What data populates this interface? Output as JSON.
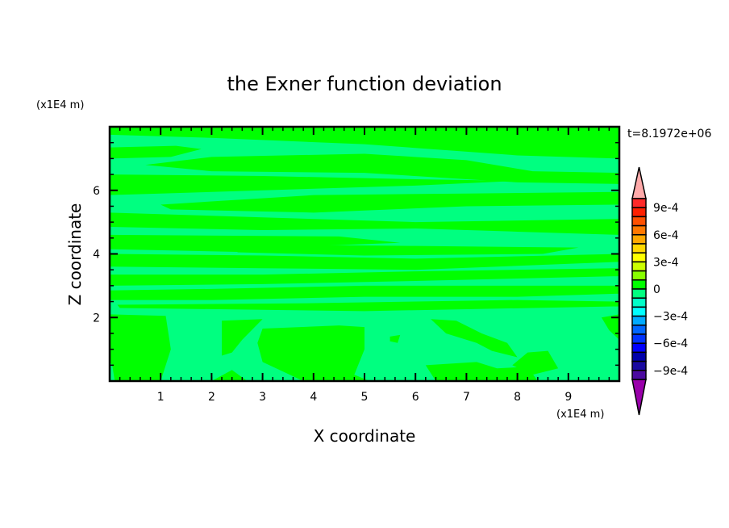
{
  "chart_data": {
    "type": "heatmap",
    "subtype": "filled-contour",
    "title": "the Exner function deviation",
    "xlabel": "X coordinate",
    "ylabel": "Z coordinate",
    "x_unit": "(x1E4 m)",
    "y_unit": "(x1E4 m)",
    "time_label": "t=8.1972e+06",
    "xlim": [
      0,
      10
    ],
    "ylim": [
      0,
      8
    ],
    "x_ticks": [
      1,
      2,
      3,
      4,
      5,
      6,
      7,
      8,
      9
    ],
    "y_ticks": [
      2,
      4,
      6
    ],
    "x_tick_labels": [
      "1",
      "2",
      "3",
      "4",
      "5",
      "6",
      "7",
      "8",
      "9"
    ],
    "y_tick_labels": [
      "2",
      "4",
      "6"
    ],
    "x_minor_step": 0.2,
    "y_minor_step": 0.5,
    "colorbar": {
      "levels_min": -0.001,
      "levels_max": 0.001,
      "level_step": 0.0001,
      "extend": "both",
      "colors_top_to_bottom": [
        "#ff2a2a",
        "#ff2000",
        "#ff5000",
        "#ff7800",
        "#ffa800",
        "#ffd800",
        "#ffff00",
        "#ccff00",
        "#88ff00",
        "#00ff00",
        "#00ff80",
        "#00ffc8",
        "#00ffff",
        "#00aaff",
        "#0066ff",
        "#0033ff",
        "#0000ff",
        "#0000aa",
        "#1a0aa0",
        "#4b0a9f"
      ],
      "over_color": "#ffaaaa",
      "under_color": "#9900aa",
      "labels": [
        {
          "value": 0.0009,
          "text": "9e-4"
        },
        {
          "value": 0.0006,
          "text": "6e-4"
        },
        {
          "value": 0.0003,
          "text": "3e-4"
        },
        {
          "value": 0,
          "text": "0"
        },
        {
          "value": -0.0003,
          "text": "−3e-4"
        },
        {
          "value": -0.0006,
          "text": "−6e-4"
        },
        {
          "value": -0.0009,
          "text": "−9e-4"
        }
      ]
    },
    "background_range": [
      -0.0001,
      0
    ],
    "background_color": "#00ff80",
    "region_range": [
      0,
      0.0001
    ],
    "region_color": "#00ff00",
    "positive_regions": [
      [
        [
          0,
          8
        ],
        [
          10,
          8
        ],
        [
          10,
          7.0
        ],
        [
          8,
          7.1
        ],
        [
          5,
          7.45
        ],
        [
          2,
          7.65
        ],
        [
          0,
          7.75
        ]
      ],
      [
        [
          0,
          7.35
        ],
        [
          1.3,
          7.4
        ],
        [
          1.8,
          7.3
        ],
        [
          1.2,
          7.05
        ],
        [
          0,
          7.0
        ]
      ],
      [
        [
          0.7,
          6.8
        ],
        [
          2,
          7.05
        ],
        [
          5,
          7.15
        ],
        [
          7,
          6.95
        ],
        [
          8.3,
          6.6
        ],
        [
          10,
          6.55
        ],
        [
          10,
          6.2
        ],
        [
          8,
          6.25
        ],
        [
          5,
          6.55
        ],
        [
          2,
          6.6
        ]
      ],
      [
        [
          0,
          6.5
        ],
        [
          3,
          6.45
        ],
        [
          6,
          6.35
        ],
        [
          8,
          6.3
        ],
        [
          6,
          6.15
        ],
        [
          3,
          6.0
        ],
        [
          1,
          5.9
        ],
        [
          0,
          5.85
        ]
      ],
      [
        [
          1.0,
          5.55
        ],
        [
          4,
          5.85
        ],
        [
          7,
          5.9
        ],
        [
          10,
          5.95
        ],
        [
          10,
          5.55
        ],
        [
          7,
          5.5
        ],
        [
          4,
          5.3
        ],
        [
          1.2,
          5.4
        ]
      ],
      [
        [
          0,
          5.3
        ],
        [
          3,
          5.15
        ],
        [
          6,
          5.0
        ],
        [
          10,
          5.1
        ],
        [
          10,
          4.6
        ],
        [
          8,
          4.7
        ],
        [
          6,
          4.8
        ],
        [
          3,
          4.75
        ],
        [
          0,
          4.85
        ]
      ],
      [
        [
          0,
          4.6
        ],
        [
          4.5,
          4.55
        ],
        [
          5.7,
          4.35
        ],
        [
          4,
          4.25
        ],
        [
          2.9,
          4.05
        ],
        [
          0,
          4.15
        ]
      ],
      [
        [
          2.8,
          4.3
        ],
        [
          6,
          4.25
        ],
        [
          9.2,
          4.2
        ],
        [
          8.5,
          4.0
        ],
        [
          5,
          3.95
        ],
        [
          2.5,
          4.05
        ]
      ],
      [
        [
          0,
          4.0
        ],
        [
          3,
          3.95
        ],
        [
          6,
          3.85
        ],
        [
          10,
          4.0
        ],
        [
          10,
          3.75
        ],
        [
          6,
          3.5
        ],
        [
          3,
          3.55
        ],
        [
          0,
          3.6
        ]
      ],
      [
        [
          0,
          3.35
        ],
        [
          3,
          3.35
        ],
        [
          6,
          3.45
        ],
        [
          10,
          3.55
        ],
        [
          10,
          3.3
        ],
        [
          6,
          3.15
        ],
        [
          3,
          3.05
        ],
        [
          0,
          3.0
        ]
      ],
      [
        [
          0,
          2.85
        ],
        [
          2,
          2.9
        ],
        [
          5,
          3.0
        ],
        [
          10,
          3.0
        ],
        [
          10,
          2.75
        ],
        [
          8,
          2.65
        ],
        [
          5,
          2.65
        ],
        [
          2,
          2.55
        ],
        [
          0,
          2.55
        ]
      ],
      [
        [
          0.15,
          2.4
        ],
        [
          4,
          2.45
        ],
        [
          8,
          2.55
        ],
        [
          10,
          2.5
        ],
        [
          10,
          2.35
        ],
        [
          5,
          2.2
        ],
        [
          0.2,
          2.3
        ]
      ],
      [
        [
          0,
          2.1
        ],
        [
          1.1,
          2.05
        ],
        [
          1.2,
          1.0
        ],
        [
          1.1,
          0.5
        ],
        [
          1.0,
          0
        ],
        [
          0.1,
          0
        ],
        [
          0.05,
          0.5
        ],
        [
          0,
          0.6
        ]
      ],
      [
        [
          2.2,
          1.9
        ],
        [
          3.0,
          1.95
        ],
        [
          2.6,
          1.3
        ],
        [
          2.4,
          0.9
        ],
        [
          2.2,
          0.8
        ]
      ],
      [
        [
          3.0,
          1.65
        ],
        [
          4.5,
          1.75
        ],
        [
          5.0,
          1.7
        ],
        [
          5.0,
          1.0
        ],
        [
          4.8,
          0.2
        ],
        [
          5.1,
          0
        ],
        [
          3.8,
          0
        ],
        [
          3.0,
          0.6
        ],
        [
          2.9,
          1.2
        ]
      ],
      [
        [
          2.0,
          0
        ],
        [
          2.7,
          0
        ],
        [
          2.4,
          0.35
        ]
      ],
      [
        [
          6.3,
          1.95
        ],
        [
          6.8,
          1.9
        ],
        [
          7.3,
          1.5
        ],
        [
          7.8,
          1.2
        ],
        [
          8.0,
          0.75
        ],
        [
          7.5,
          0.95
        ],
        [
          7.2,
          1.2
        ],
        [
          6.6,
          1.5
        ]
      ],
      [
        [
          6.2,
          0.5
        ],
        [
          7.2,
          0.6
        ],
        [
          7.6,
          0.4
        ],
        [
          8.2,
          0.45
        ],
        [
          8.4,
          0
        ],
        [
          6.4,
          0
        ]
      ],
      [
        [
          7.9,
          0.5
        ],
        [
          8.2,
          0.9
        ],
        [
          8.6,
          0.95
        ],
        [
          8.8,
          0.4
        ],
        [
          8.3,
          0.2
        ]
      ],
      [
        [
          9.65,
          2.0
        ],
        [
          10,
          2.1
        ],
        [
          10,
          1.3
        ],
        [
          9.8,
          1.6
        ]
      ],
      [
        [
          5.5,
          1.4
        ],
        [
          5.7,
          1.45
        ],
        [
          5.65,
          1.2
        ],
        [
          5.5,
          1.25
        ]
      ]
    ]
  }
}
